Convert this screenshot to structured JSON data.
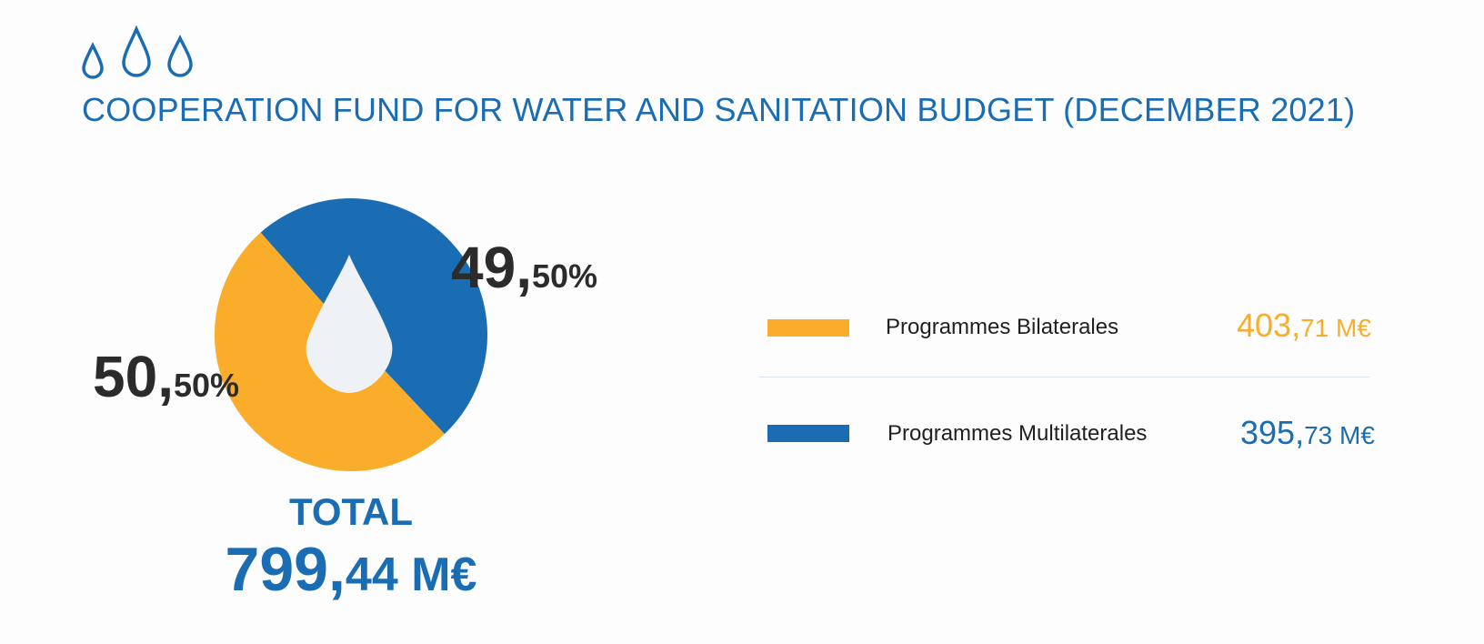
{
  "title": "COOPERATION FUND FOR WATER AND SANITATION BUDGET (DECEMBER 2021)",
  "icons": {
    "header": "water-drops-icon",
    "center": "water-drop-icon"
  },
  "colors": {
    "bilateral": "#f9ad2a",
    "multilateral": "#1b6db3",
    "drop": "#eef2f6",
    "title": "#1b6db3"
  },
  "chart_data": {
    "type": "pie",
    "title": "COOPERATION FUND FOR WATER AND SANITATION BUDGET (DECEMBER 2021)",
    "series": [
      {
        "name": "Programmes Bilaterales",
        "value": 403.71,
        "percent": 50.5,
        "color": "#f9ad2a",
        "percent_label": {
          "int": "50,",
          "dec": "50%"
        },
        "amount_label": {
          "int": "403,",
          "dec": "71 M€"
        }
      },
      {
        "name": "Programmes Multilaterales",
        "value": 395.73,
        "percent": 49.5,
        "color": "#1b6db3",
        "percent_label": {
          "int": "49,",
          "dec": "50%"
        },
        "amount_label": {
          "int": "395,",
          "dec": "73 M€"
        }
      }
    ],
    "total": {
      "label": "TOTAL",
      "value": 799.44,
      "int": "799,",
      "dec": "44 M€"
    },
    "legend_position": "right"
  }
}
